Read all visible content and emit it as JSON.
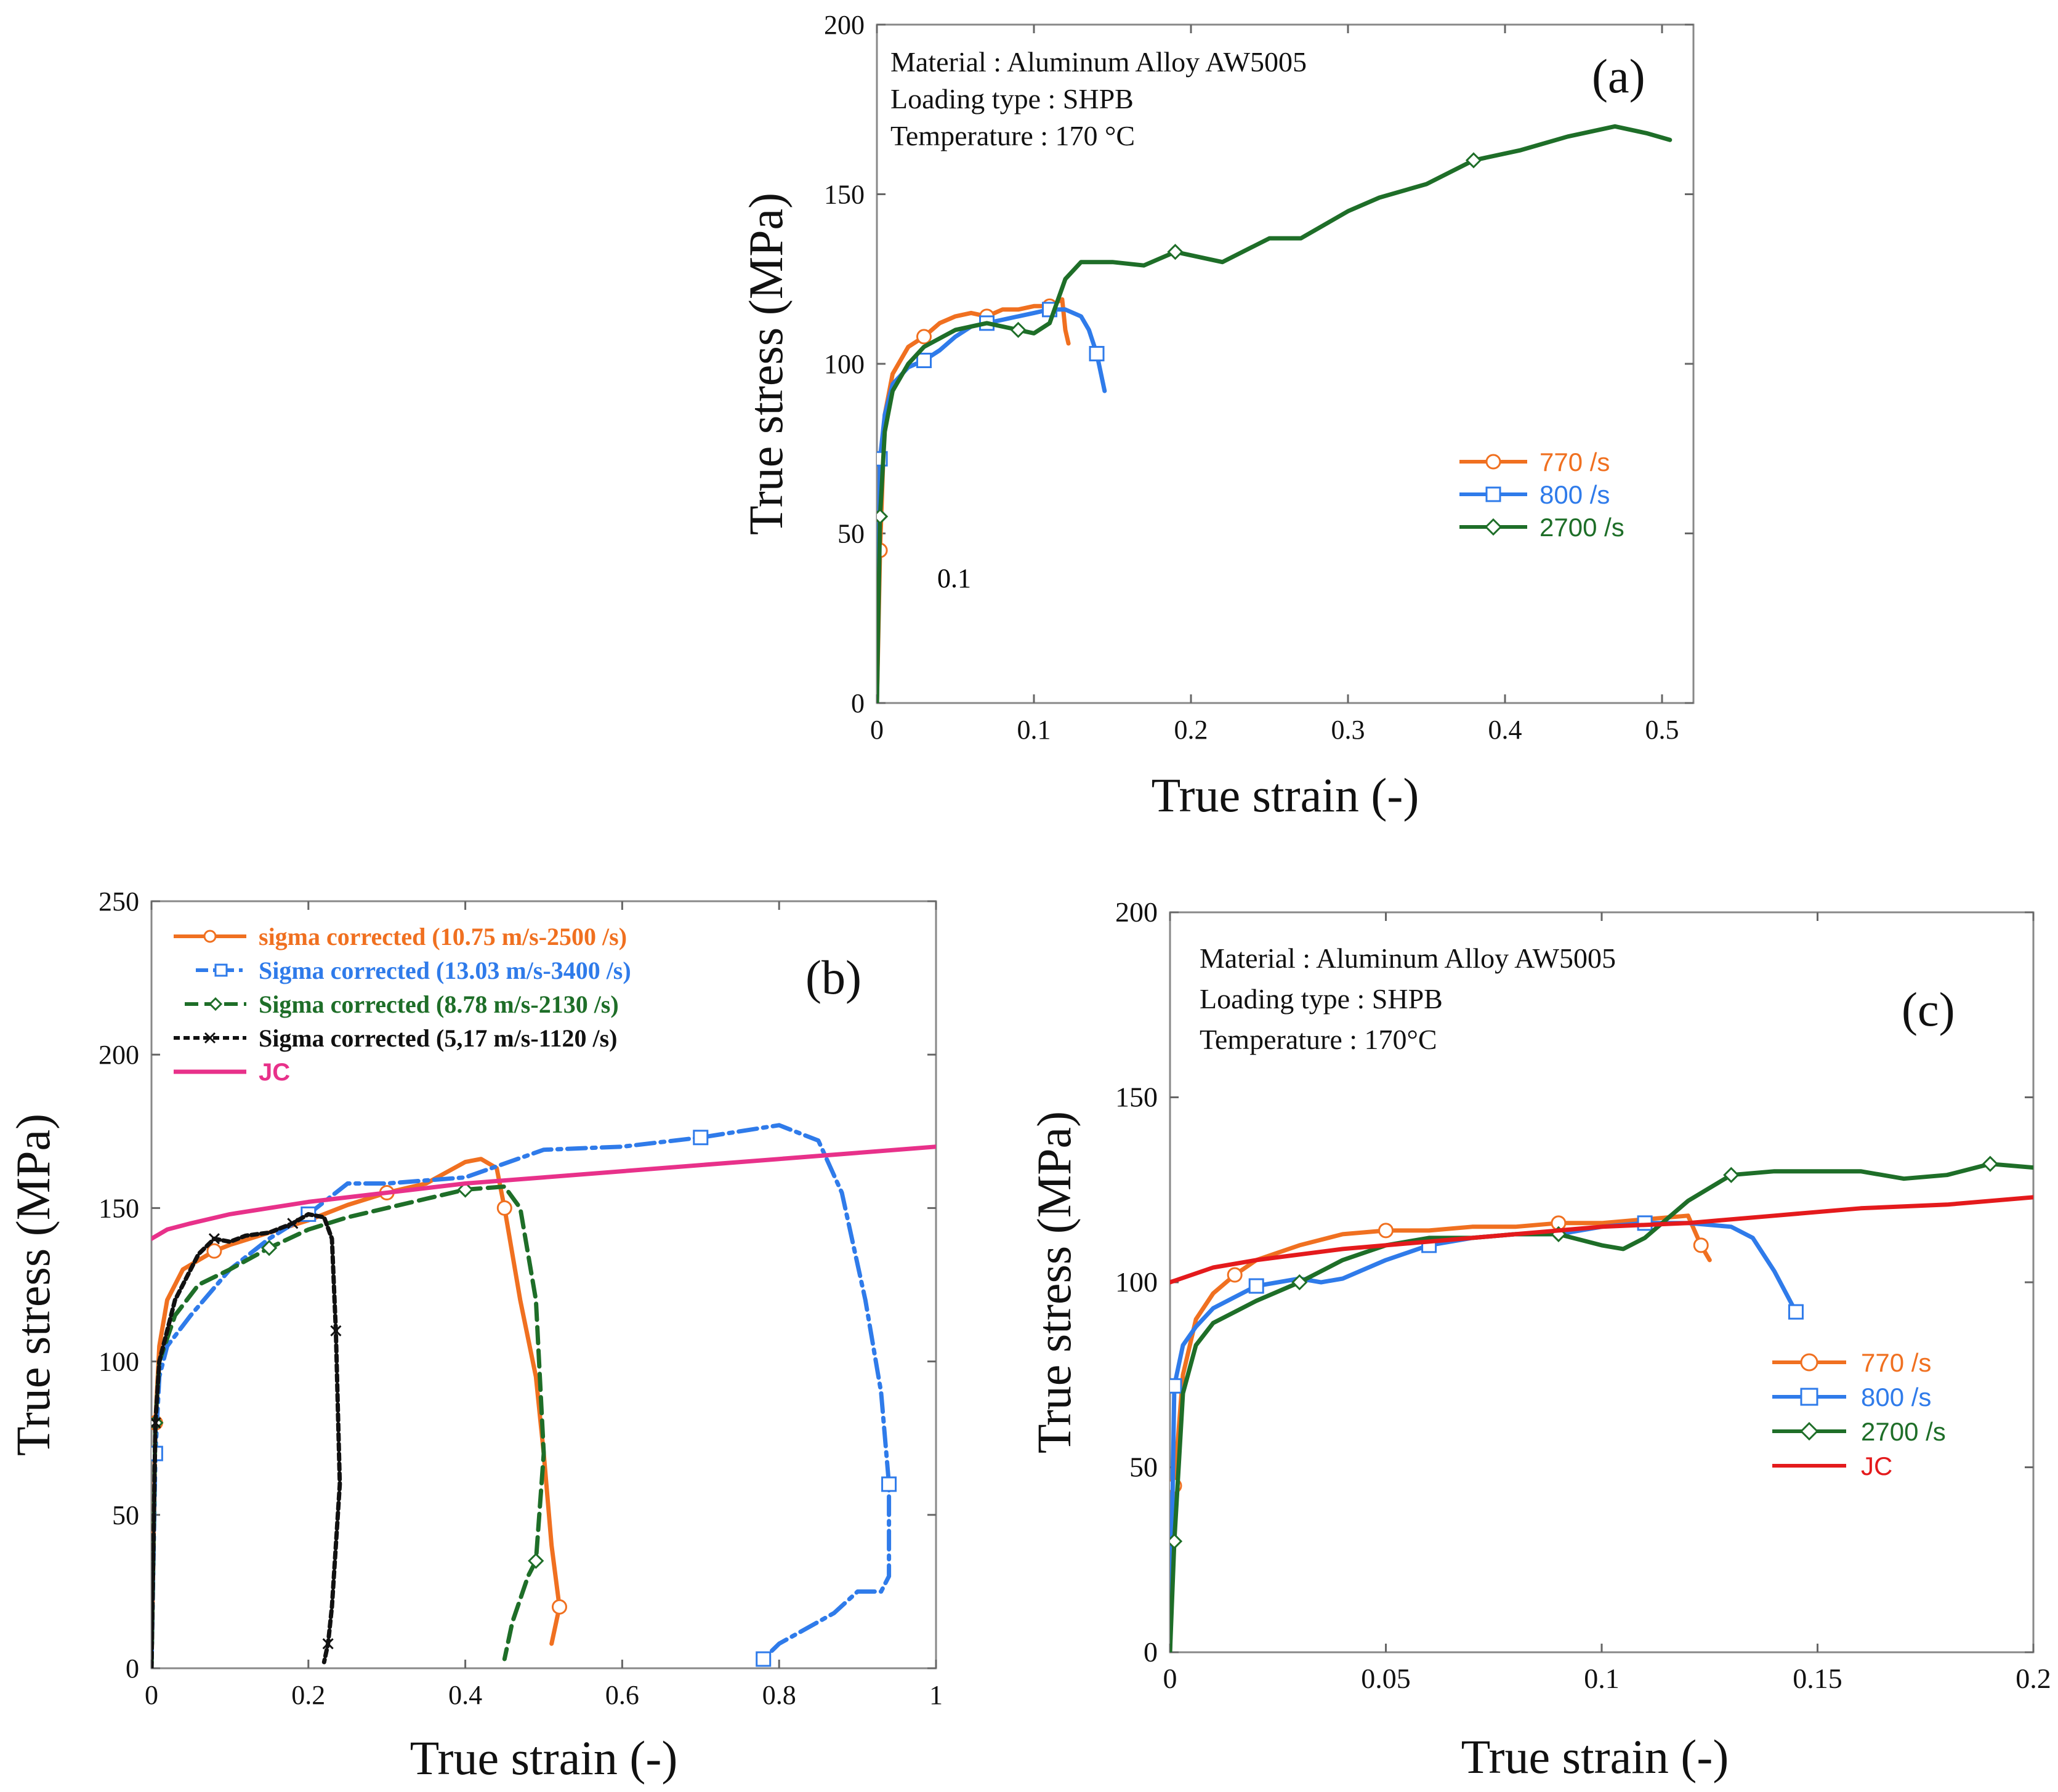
{
  "chart_data": [
    {
      "panel": "(a)",
      "type": "line",
      "xlabel": "True strain (-)",
      "ylabel": "True stress (MPa)",
      "xlim": [
        0,
        0.52
      ],
      "ylim": [
        0,
        200
      ],
      "xticks": [
        0,
        0.1,
        0.2,
        0.3,
        0.4,
        0.5
      ],
      "yticks": [
        0,
        50,
        100,
        150,
        200
      ],
      "info": [
        "Material : Aluminum Alloy AW5005",
        "Loading type : SHPB",
        "Temperature : 170 °C"
      ],
      "annotation": "0.1",
      "legend_position": "lower-right",
      "series": [
        {
          "name": "770 /s",
          "color": "#f07020",
          "marker": "circle",
          "x": [
            0,
            0.002,
            0.005,
            0.01,
            0.02,
            0.03,
            0.04,
            0.05,
            0.06,
            0.07,
            0.08,
            0.09,
            0.1,
            0.11,
            0.118,
            0.12,
            0.122
          ],
          "y": [
            0,
            45,
            85,
            97,
            105,
            108,
            112,
            114,
            115,
            114,
            116,
            116,
            117,
            117,
            119,
            110,
            106
          ]
        },
        {
          "name": "800 /s",
          "color": "#2f7bea",
          "marker": "square",
          "x": [
            0,
            0.002,
            0.005,
            0.01,
            0.02,
            0.03,
            0.04,
            0.05,
            0.06,
            0.07,
            0.08,
            0.09,
            0.1,
            0.11,
            0.12,
            0.13,
            0.135,
            0.14,
            0.145
          ],
          "y": [
            0,
            72,
            85,
            94,
            99,
            101,
            104,
            108,
            111,
            112,
            113,
            114,
            115,
            116,
            116,
            114,
            110,
            103,
            92
          ]
        },
        {
          "name": "2700 /s",
          "color": "#1e6e28",
          "marker": "diamond",
          "x": [
            0,
            0.002,
            0.005,
            0.01,
            0.02,
            0.03,
            0.05,
            0.07,
            0.09,
            0.1,
            0.11,
            0.12,
            0.13,
            0.15,
            0.17,
            0.19,
            0.22,
            0.25,
            0.27,
            0.3,
            0.32,
            0.35,
            0.38,
            0.41,
            0.44,
            0.47,
            0.49,
            0.505
          ],
          "y": [
            0,
            55,
            80,
            92,
            100,
            105,
            110,
            112,
            110,
            109,
            112,
            125,
            130,
            130,
            129,
            133,
            130,
            137,
            137,
            145,
            149,
            153,
            160,
            163,
            167,
            170,
            168,
            166
          ]
        }
      ]
    },
    {
      "panel": "(b)",
      "type": "line",
      "xlabel": "True strain (-)",
      "ylabel": "True stress (MPa)",
      "xlim": [
        0,
        1
      ],
      "ylim": [
        0,
        250
      ],
      "xticks": [
        0,
        0.2,
        0.4,
        0.6,
        0.8,
        1
      ],
      "yticks": [
        0,
        50,
        100,
        150,
        200,
        250
      ],
      "legend_position": "top-left",
      "series": [
        {
          "name": "sigma corrected  (10.75 m/s-2500 /s)",
          "color": "#f07020",
          "dash": "solid",
          "marker": "circle",
          "x": [
            0,
            0.005,
            0.01,
            0.02,
            0.04,
            0.06,
            0.08,
            0.1,
            0.15,
            0.2,
            0.25,
            0.3,
            0.35,
            0.4,
            0.42,
            0.44,
            0.45,
            0.47,
            0.49,
            0.5,
            0.51,
            0.52,
            0.51
          ],
          "y": [
            0,
            80,
            105,
            120,
            130,
            133,
            136,
            138,
            142,
            146,
            151,
            155,
            158,
            165,
            166,
            163,
            150,
            120,
            95,
            70,
            40,
            20,
            8
          ]
        },
        {
          "name": "Sigma corrected  (13.03 m/s-3400 /s)",
          "color": "#2f7bea",
          "dash": "dashdot",
          "marker": "square",
          "x": [
            0,
            0.005,
            0.01,
            0.02,
            0.05,
            0.1,
            0.15,
            0.2,
            0.25,
            0.3,
            0.4,
            0.5,
            0.6,
            0.7,
            0.8,
            0.85,
            0.88,
            0.91,
            0.93,
            0.94,
            0.94,
            0.93,
            0.9,
            0.87,
            0.8,
            0.78
          ],
          "y": [
            0,
            70,
            95,
            105,
            115,
            130,
            140,
            148,
            158,
            158,
            160,
            169,
            170,
            173,
            177,
            172,
            155,
            120,
            90,
            60,
            30,
            25,
            25,
            18,
            8,
            3
          ]
        },
        {
          "name": "Sigma corrected  (8.78 m/s-2130 /s)",
          "color": "#1e6e28",
          "dash": "dashed",
          "marker": "diamond",
          "x": [
            0,
            0.005,
            0.01,
            0.03,
            0.06,
            0.1,
            0.15,
            0.2,
            0.25,
            0.3,
            0.35,
            0.4,
            0.45,
            0.47,
            0.49,
            0.5,
            0.49,
            0.48,
            0.46,
            0.45
          ],
          "y": [
            0,
            80,
            100,
            115,
            125,
            130,
            137,
            143,
            147,
            150,
            153,
            156,
            157,
            150,
            120,
            70,
            35,
            30,
            15,
            3
          ]
        },
        {
          "name": "Sigma corrected  (5,17 m/s-1120 /s)",
          "color": "#111111",
          "dash": "shortdash",
          "marker": "cross",
          "x": [
            0,
            0.005,
            0.01,
            0.03,
            0.06,
            0.08,
            0.1,
            0.12,
            0.15,
            0.18,
            0.2,
            0.22,
            0.23,
            0.235,
            0.24,
            0.235,
            0.23,
            0.225,
            0.22
          ],
          "y": [
            0,
            80,
            100,
            120,
            135,
            140,
            139,
            141,
            142,
            145,
            148,
            147,
            140,
            110,
            60,
            40,
            20,
            8,
            2
          ]
        },
        {
          "name": "JC",
          "color": "#e8318a",
          "dash": "solid",
          "marker": "none",
          "x": [
            0,
            0.02,
            0.05,
            0.1,
            0.2,
            0.3,
            0.4,
            0.5,
            0.6,
            0.7,
            0.8,
            0.9,
            1.0
          ],
          "y": [
            140,
            143,
            145,
            148,
            152,
            155,
            158,
            160,
            162,
            164,
            166,
            168,
            170
          ]
        }
      ]
    },
    {
      "panel": "(c)",
      "type": "line",
      "xlabel": "True strain (-)",
      "ylabel": "True stress (MPa)",
      "xlim": [
        0,
        0.2
      ],
      "ylim": [
        0,
        200
      ],
      "xticks": [
        0,
        0.05,
        0.1,
        0.15,
        0.2
      ],
      "yticks": [
        0,
        50,
        100,
        150,
        200
      ],
      "info": [
        "Material : Aluminum Alloy AW5005",
        "Loading type : SHPB",
        "Temperature : 170°C"
      ],
      "legend_position": "lower-right",
      "series": [
        {
          "name": "770 /s",
          "color": "#f07020",
          "marker": "circle",
          "x": [
            0,
            0.001,
            0.003,
            0.006,
            0.01,
            0.015,
            0.02,
            0.03,
            0.04,
            0.05,
            0.06,
            0.07,
            0.08,
            0.09,
            0.1,
            0.11,
            0.12,
            0.123,
            0.125
          ],
          "y": [
            0,
            45,
            75,
            90,
            97,
            102,
            106,
            110,
            113,
            114,
            114,
            115,
            115,
            116,
            116,
            117,
            118,
            110,
            106
          ]
        },
        {
          "name": "800 /s",
          "color": "#2f7bea",
          "marker": "square",
          "x": [
            0,
            0.001,
            0.003,
            0.006,
            0.01,
            0.015,
            0.02,
            0.03,
            0.035,
            0.04,
            0.05,
            0.06,
            0.07,
            0.08,
            0.09,
            0.1,
            0.11,
            0.12,
            0.13,
            0.135,
            0.14,
            0.145
          ],
          "y": [
            0,
            72,
            83,
            88,
            93,
            96,
            99,
            101,
            100,
            101,
            106,
            110,
            112,
            113,
            113,
            115,
            116,
            116,
            115,
            112,
            103,
            92
          ]
        },
        {
          "name": "2700 /s",
          "color": "#1e6e28",
          "marker": "diamond",
          "x": [
            0,
            0.001,
            0.003,
            0.006,
            0.01,
            0.015,
            0.02,
            0.03,
            0.04,
            0.05,
            0.06,
            0.07,
            0.08,
            0.09,
            0.1,
            0.105,
            0.11,
            0.115,
            0.12,
            0.13,
            0.14,
            0.15,
            0.16,
            0.17,
            0.18,
            0.19,
            0.2
          ],
          "y": [
            0,
            30,
            70,
            83,
            89,
            92,
            95,
            100,
            106,
            110,
            112,
            112,
            113,
            113,
            110,
            109,
            112,
            117,
            122,
            129,
            130,
            130,
            130,
            128,
            129,
            132,
            131
          ]
        },
        {
          "name": "JC",
          "color": "#e41a1c",
          "marker": "none",
          "x": [
            0,
            0.01,
            0.02,
            0.04,
            0.06,
            0.08,
            0.1,
            0.12,
            0.14,
            0.16,
            0.18,
            0.2
          ],
          "y": [
            100,
            104,
            106,
            109,
            111,
            113,
            115,
            116,
            118,
            120,
            121,
            123
          ]
        }
      ]
    }
  ]
}
